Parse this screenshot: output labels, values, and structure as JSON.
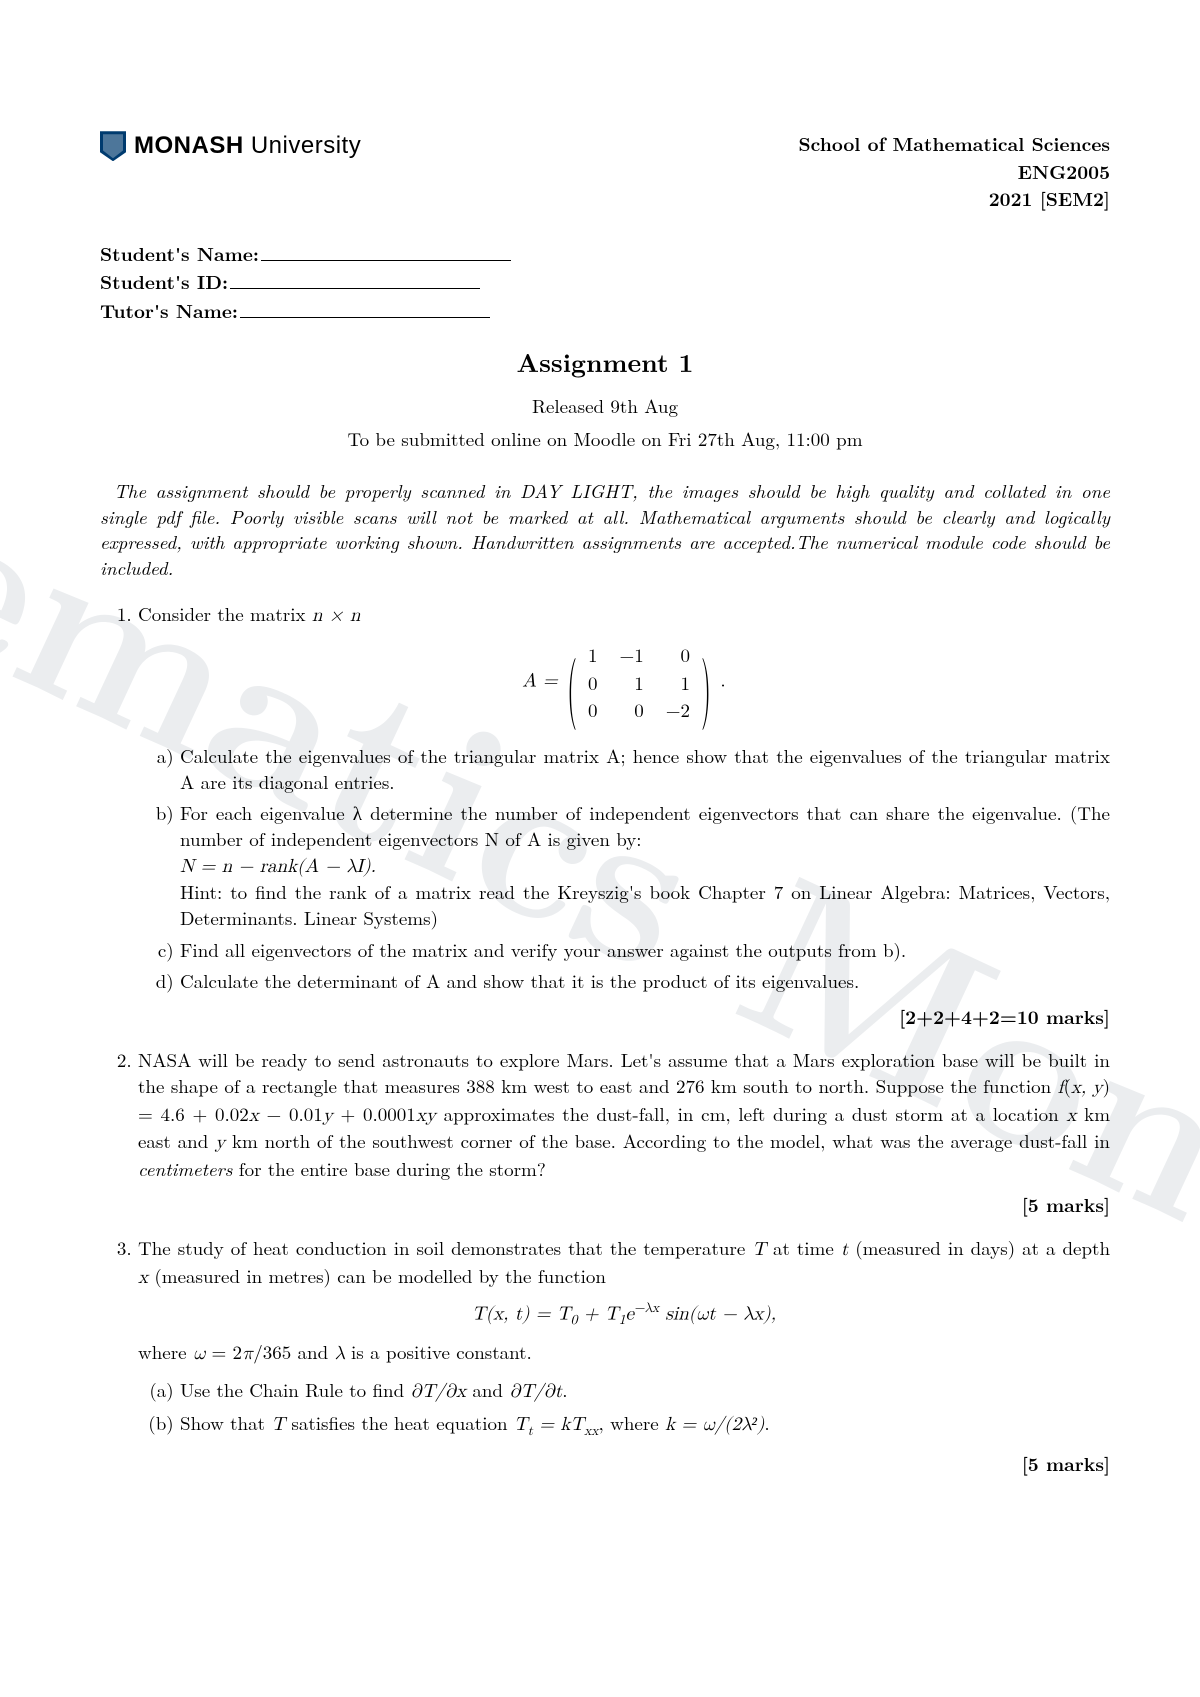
{
  "logo": {
    "bold": "MONASH",
    "light": "University"
  },
  "header_right": {
    "line1": "School of Mathematical Sciences",
    "line2": "ENG2005",
    "line3": "2021 [SEM2]"
  },
  "fields": {
    "student_name": "Student's Name:",
    "student_id": "Student's ID:",
    "tutor_name": "Tutor's Name:"
  },
  "title": "Assignment 1",
  "released": "Released 9th Aug",
  "due": "To be submitted online on Moodle on Fri 27th Aug, 11:00 pm",
  "instructions": "The assignment should be properly scanned in DAY LIGHT, the images should be high quality and collated in one single pdf file. Poorly visible scans will not be marked at all. Mathematical arguments should be clearly and logically expressed, with appropriate working shown. Handwritten assignments are accepted.The numerical module code should be included.",
  "q1": {
    "intro": "Consider the matrix n × n",
    "matrix_prefix": "A = ",
    "matrix": [
      [
        "1",
        "−1",
        "0"
      ],
      [
        "0",
        "1",
        "1"
      ],
      [
        "0",
        "0",
        "−2"
      ]
    ],
    "matrix_suffix": ".",
    "a": "Calculate the eigenvalues of the triangular matrix A; hence show that the eigenvalues of the triangular matrix A are its diagonal entries.",
    "b": "For each eigenvalue λ determine the number of independent eigenvectors that can share the eigenvalue. (The number of independent eigenvectors N of A is given by:",
    "b_eq": "N = n − rank(A − λI).",
    "b_hint": "Hint: to find the rank of a matrix read the Kreyszig's book Chapter 7 on Linear Algebra: Matrices, Vectors, Determinants. Linear Systems)",
    "c": "Find all eigenvectors of the matrix and verify your answer against the outputs from b).",
    "d": "Calculate the determinant of A and show that it is the product of its eigenvalues.",
    "marks": "[2+2+4+2=10 marks]"
  },
  "q2": {
    "text": "NASA will be ready to send astronauts to explore Mars. Let's assume that a Mars exploration base will be built in the shape of a rectangle that measures 388 km west to east and 276 km south to north. Suppose the function f(x, y) = 4.6 + 0.02x − 0.01y + 0.0001xy approximates the dust-fall, in cm, left during a dust storm at a location x km east and y km north of the southwest corner of the base. According to the model, what was the average dust-fall in centimeters for the entire base during the storm?",
    "marks": "[5 marks]"
  },
  "q3": {
    "intro": "The study of heat conduction in soil demonstrates that the temperature T at time t (measured in days) at a depth x (measured in metres) can be modelled by the function",
    "where": "where ω = 2π/365 and λ is a positive constant.",
    "a": "Use the Chain Rule to find ∂T/∂x and ∂T/∂t.",
    "b_pre": "Show that T satisfies the heat equation ",
    "b_post": ", where k = ω/(2λ²).",
    "marks": "[5 marks]"
  },
  "watermark": "Mathematics Monash U"
}
